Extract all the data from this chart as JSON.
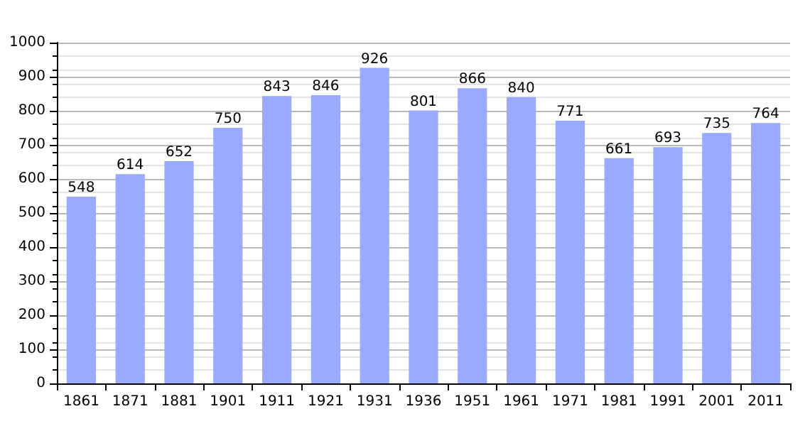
{
  "chart_data": {
    "type": "bar",
    "categories": [
      "1861",
      "1871",
      "1881",
      "1901",
      "1911",
      "1921",
      "1931",
      "1936",
      "1951",
      "1961",
      "1971",
      "1981",
      "1991",
      "2001",
      "2011"
    ],
    "values": [
      548,
      614,
      652,
      750,
      843,
      846,
      926,
      801,
      866,
      840,
      771,
      661,
      693,
      735,
      764
    ],
    "color": "#99aaff",
    "ylim": [
      0,
      1000
    ],
    "yticks": [
      0,
      100,
      200,
      300,
      400,
      500,
      600,
      700,
      800,
      900,
      1000
    ],
    "grid": "y",
    "data_labels": true
  }
}
